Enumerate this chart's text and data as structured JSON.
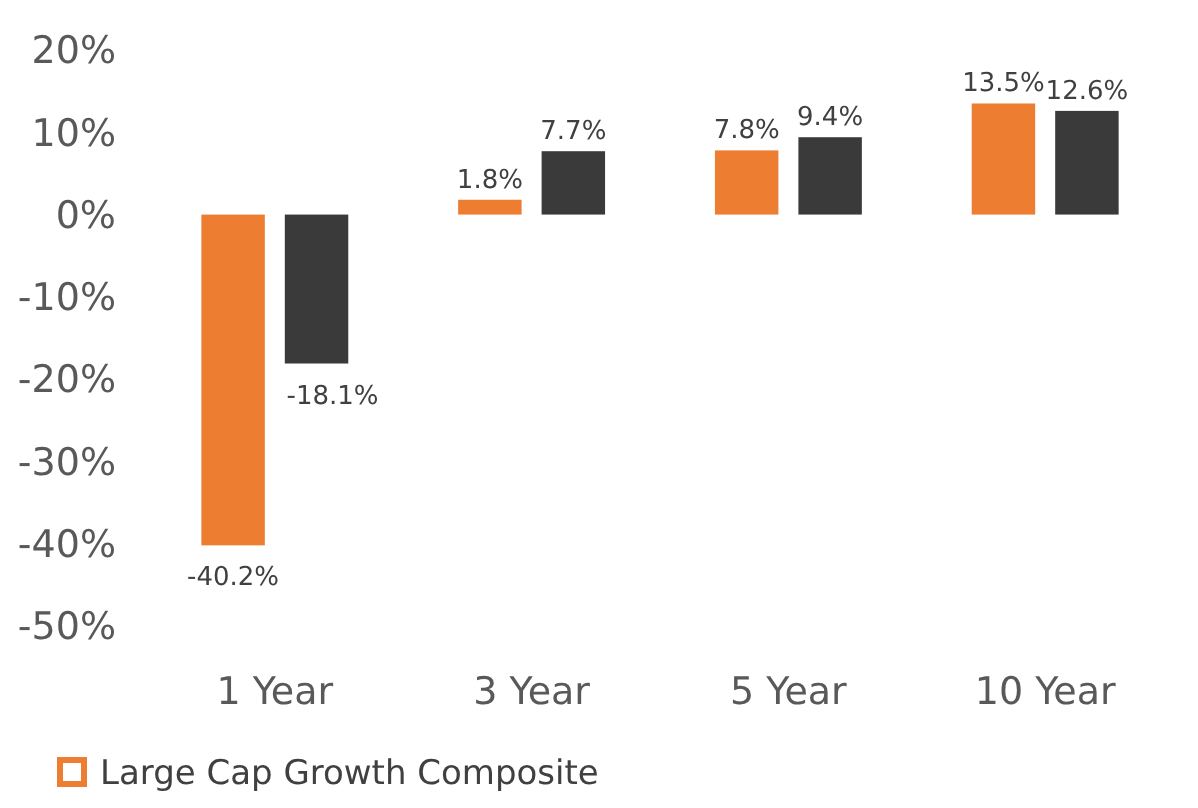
{
  "chart_data": {
    "type": "bar",
    "categories": [
      "1 Year",
      "3 Year",
      "5 Year",
      "10 Year"
    ],
    "series": [
      {
        "name": "Large Cap Growth Composite",
        "color": "#ed7d31",
        "values": [
          -40.2,
          1.8,
          7.8,
          13.5
        ],
        "value_labels": [
          "-40.2%",
          "1.8%",
          "7.8%",
          "13.5%"
        ]
      },
      {
        "color": "#3a3a3a",
        "values": [
          -18.1,
          7.7,
          9.4,
          12.6
        ],
        "value_labels": [
          "-18.1%",
          "7.7%",
          "9.4%",
          "12.6%"
        ]
      }
    ],
    "ylim": [
      -50,
      20
    ],
    "yticks": [
      {
        "value": 20,
        "label": "20%"
      },
      {
        "value": 10,
        "label": "10%"
      },
      {
        "value": 0,
        "label": "0%"
      },
      {
        "value": -10,
        "label": "-10%"
      },
      {
        "value": -20,
        "label": "-20%"
      },
      {
        "value": -30,
        "label": "-30%"
      },
      {
        "value": -40,
        "label": "-40%"
      },
      {
        "value": -50,
        "label": "-50%"
      }
    ],
    "grid": false,
    "legend": "bottom"
  }
}
